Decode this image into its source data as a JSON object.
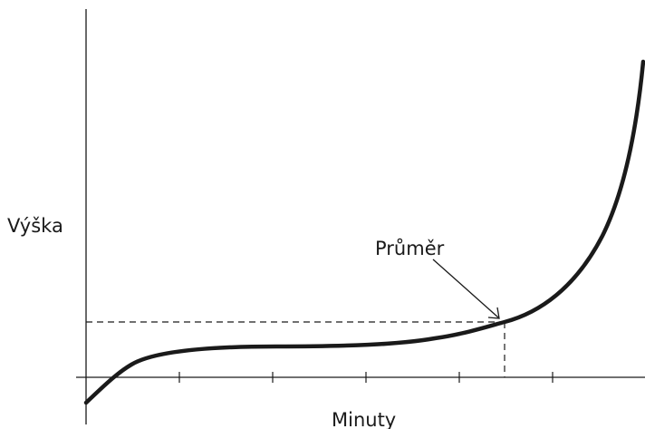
{
  "chart_data": {
    "type": "line",
    "title": "",
    "xlabel": "Minuty",
    "ylabel": "Výška",
    "grid": false,
    "legend": "none",
    "annotation": {
      "text": "Průměr"
    },
    "colors": {
      "curve": "#1a1a1a",
      "axis": "#1a1a1a",
      "guide": "#1a1a1a"
    }
  }
}
